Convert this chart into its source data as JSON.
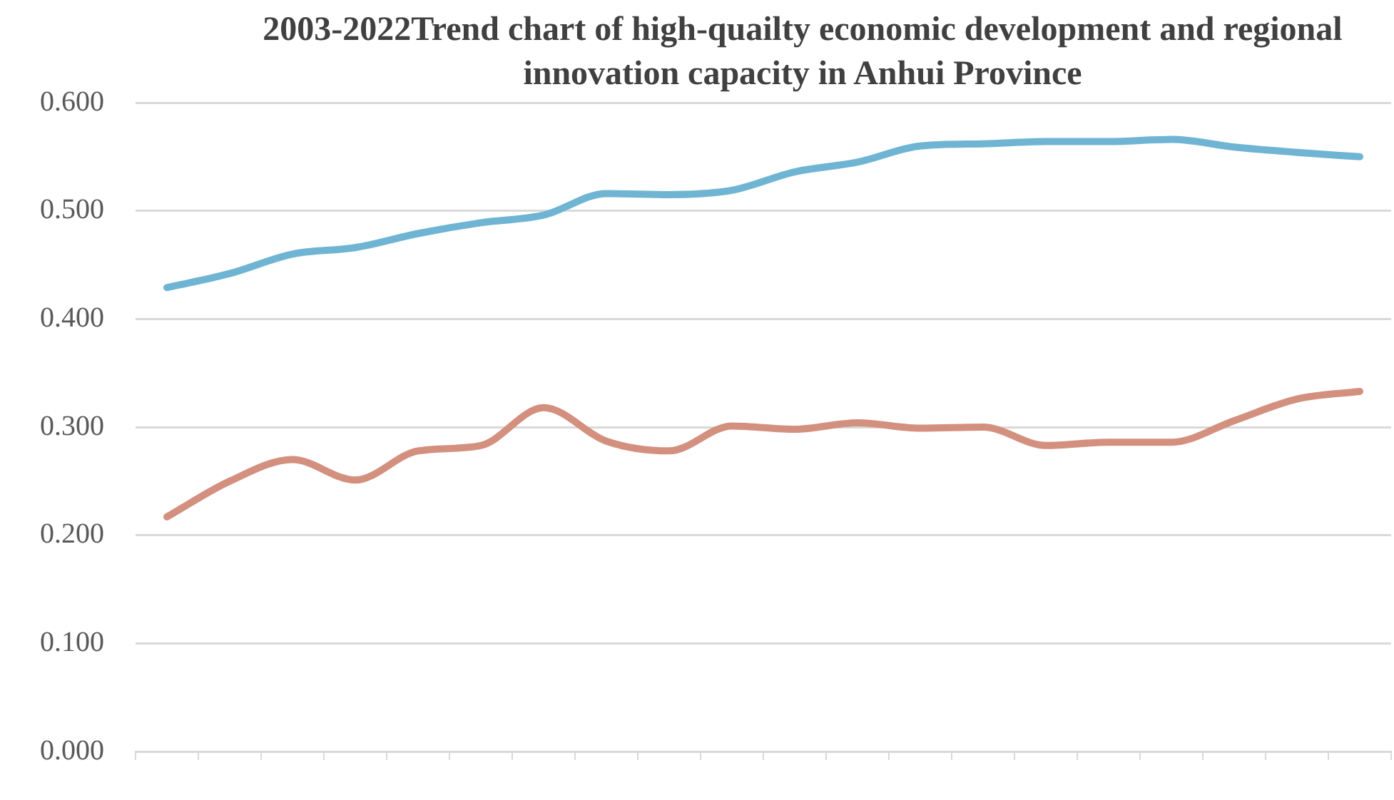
{
  "chart_data": {
    "type": "line",
    "title": "2003-2022Trend chart of high-quailty economic development and regional innovation capacity in Anhui Province",
    "categories": [
      null,
      null,
      null,
      null,
      null,
      null,
      null,
      null,
      null,
      null,
      null,
      null,
      null,
      null,
      null,
      null,
      null,
      null,
      null,
      null
    ],
    "series": [
      {
        "color": "#6fb5d3",
        "values": [
          0.429,
          0.442,
          0.46,
          0.466,
          0.479,
          0.489,
          0.496,
          0.516,
          0.515,
          0.519,
          0.536,
          0.545,
          0.56,
          0.562,
          0.564,
          0.564,
          0.566,
          0.559,
          0.554,
          0.55
        ]
      },
      {
        "color": "#d4907f",
        "values": [
          0.217,
          0.25,
          0.27,
          0.251,
          0.278,
          0.283,
          0.318,
          0.287,
          0.278,
          0.301,
          0.298,
          0.304,
          0.299,
          0.3,
          0.283,
          0.286,
          0.286,
          0.306,
          0.326,
          0.333
        ]
      }
    ],
    "ylim": [
      0,
      0.6
    ],
    "yticks": [
      {
        "value": 0,
        "label": "0.000"
      },
      {
        "value": 0.1,
        "label": "0.100"
      },
      {
        "value": 0.2,
        "label": "0.200"
      },
      {
        "value": 0.3,
        "label": "0.300"
      },
      {
        "value": 0.4,
        "label": "0.400"
      },
      {
        "value": 0.5,
        "label": "0.500"
      },
      {
        "value": 0.6,
        "label": "0.600"
      }
    ],
    "grid": "y",
    "legend": false,
    "marker": "none",
    "line_style": "solid",
    "tick_labels": "y"
  }
}
